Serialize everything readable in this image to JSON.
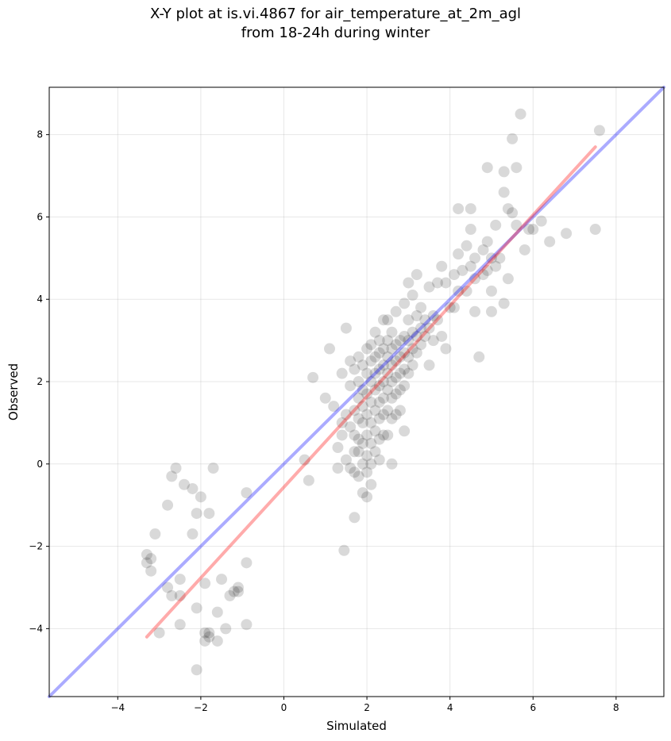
{
  "chart_data": {
    "type": "scatter",
    "title_lines": [
      "X-Y plot at is.vi.4867 for air_temperature_at_2m_agl",
      "from 18-24h during winter"
    ],
    "xlabel": "Simulated",
    "ylabel": "Observed",
    "xlim": [
      -5.65,
      9.15
    ],
    "ylim": [
      -5.65,
      9.15
    ],
    "xticks": [
      -4,
      -2,
      0,
      2,
      4,
      6,
      8
    ],
    "yticks": [
      -4,
      -2,
      0,
      2,
      4,
      6,
      8
    ],
    "grid": true,
    "point_color": "#000000",
    "point_alpha": 0.15,
    "lines": [
      {
        "color": "#0000ff",
        "alpha": 0.33,
        "x": [
          -5.65,
          9.15
        ],
        "y": [
          -5.65,
          9.15
        ]
      },
      {
        "color": "#ff0000",
        "alpha": 0.33,
        "x": [
          -3.3,
          7.5
        ],
        "y": [
          -4.2,
          7.7
        ]
      }
    ],
    "points": [
      [
        -3.3,
        -2.4
      ],
      [
        -3.3,
        -2.2
      ],
      [
        -3.2,
        -2.6
      ],
      [
        -3.2,
        -2.3
      ],
      [
        -3.1,
        -1.7
      ],
      [
        -3.0,
        -4.1
      ],
      [
        -2.8,
        -1.0
      ],
      [
        -2.8,
        -3.0
      ],
      [
        -2.7,
        -3.2
      ],
      [
        -2.7,
        -0.3
      ],
      [
        -2.6,
        -0.1
      ],
      [
        -2.5,
        -2.8
      ],
      [
        -2.5,
        -3.2
      ],
      [
        -2.5,
        -3.9
      ],
      [
        -2.4,
        -0.5
      ],
      [
        -2.2,
        -0.6
      ],
      [
        -2.2,
        -1.7
      ],
      [
        -2.1,
        -1.2
      ],
      [
        -2.1,
        -3.5
      ],
      [
        -2.1,
        -5.0
      ],
      [
        -2.0,
        -0.8
      ],
      [
        -1.9,
        -2.9
      ],
      [
        -1.9,
        -4.1
      ],
      [
        -1.9,
        -4.3
      ],
      [
        -1.8,
        -4.2
      ],
      [
        -1.8,
        -1.2
      ],
      [
        -1.8,
        -4.1
      ],
      [
        -1.7,
        -0.1
      ],
      [
        -1.6,
        -4.3
      ],
      [
        -1.6,
        -3.6
      ],
      [
        -1.5,
        -2.8
      ],
      [
        -1.4,
        -4.0
      ],
      [
        -1.3,
        -3.2
      ],
      [
        -1.2,
        -3.1
      ],
      [
        -1.1,
        -3.0
      ],
      [
        -1.1,
        -3.1
      ],
      [
        -0.9,
        -2.4
      ],
      [
        -0.9,
        -3.9
      ],
      [
        -0.9,
        -0.7
      ],
      [
        0.5,
        0.1
      ],
      [
        0.6,
        -0.4
      ],
      [
        0.7,
        2.1
      ],
      [
        1.0,
        1.6
      ],
      [
        1.1,
        2.8
      ],
      [
        1.2,
        1.4
      ],
      [
        1.3,
        0.4
      ],
      [
        1.3,
        -0.1
      ],
      [
        1.4,
        2.2
      ],
      [
        1.4,
        1.0
      ],
      [
        1.4,
        0.7
      ],
      [
        1.45,
        -2.1
      ],
      [
        1.5,
        3.3
      ],
      [
        1.5,
        0.1
      ],
      [
        1.5,
        1.2
      ],
      [
        1.6,
        2.5
      ],
      [
        1.6,
        1.9
      ],
      [
        1.6,
        0.9
      ],
      [
        1.6,
        -0.1
      ],
      [
        1.7,
        2.3
      ],
      [
        1.7,
        1.3
      ],
      [
        1.7,
        0.7
      ],
      [
        1.7,
        0.3
      ],
      [
        1.7,
        -0.2
      ],
      [
        1.7,
        -1.3
      ],
      [
        1.8,
        2.6
      ],
      [
        1.8,
        2.0
      ],
      [
        1.8,
        1.6
      ],
      [
        1.8,
        1.1
      ],
      [
        1.8,
        0.6
      ],
      [
        1.8,
        0.3
      ],
      [
        1.8,
        -0.3
      ],
      [
        1.9,
        2.4
      ],
      [
        1.9,
        1.8
      ],
      [
        1.9,
        1.4
      ],
      [
        1.9,
        1.0
      ],
      [
        1.9,
        0.5
      ],
      [
        1.9,
        0.0
      ],
      [
        1.9,
        -0.7
      ],
      [
        2.0,
        2.8
      ],
      [
        2.0,
        2.2
      ],
      [
        2.0,
        1.7
      ],
      [
        2.0,
        1.2
      ],
      [
        2.0,
        0.7
      ],
      [
        2.0,
        0.2
      ],
      [
        2.0,
        -0.2
      ],
      [
        2.0,
        -0.8
      ],
      [
        2.1,
        2.9
      ],
      [
        2.1,
        2.5
      ],
      [
        2.1,
        2.0
      ],
      [
        2.1,
        1.5
      ],
      [
        2.1,
        1.0
      ],
      [
        2.1,
        0.5
      ],
      [
        2.1,
        0.0
      ],
      [
        2.1,
        -0.5
      ],
      [
        2.2,
        3.2
      ],
      [
        2.2,
        2.6
      ],
      [
        2.2,
        2.2
      ],
      [
        2.2,
        1.8
      ],
      [
        2.2,
        1.3
      ],
      [
        2.2,
        0.8
      ],
      [
        2.2,
        0.3
      ],
      [
        2.3,
        3.0
      ],
      [
        2.3,
        2.7
      ],
      [
        2.3,
        2.3
      ],
      [
        2.3,
        1.9
      ],
      [
        2.3,
        1.5
      ],
      [
        2.3,
        1.1
      ],
      [
        2.3,
        0.6
      ],
      [
        2.3,
        0.1
      ],
      [
        2.4,
        3.5
      ],
      [
        2.4,
        2.8
      ],
      [
        2.4,
        2.4
      ],
      [
        2.4,
        2.0
      ],
      [
        2.4,
        1.6
      ],
      [
        2.4,
        1.2
      ],
      [
        2.4,
        0.7
      ],
      [
        2.5,
        3.5
      ],
      [
        2.5,
        3.0
      ],
      [
        2.5,
        2.6
      ],
      [
        2.5,
        2.2
      ],
      [
        2.5,
        1.8
      ],
      [
        2.5,
        1.3
      ],
      [
        2.5,
        0.7
      ],
      [
        2.6,
        3.2
      ],
      [
        2.6,
        2.8
      ],
      [
        2.6,
        2.4
      ],
      [
        2.6,
        2.0
      ],
      [
        2.6,
        1.6
      ],
      [
        2.6,
        1.1
      ],
      [
        2.6,
        0.0
      ],
      [
        2.7,
        3.7
      ],
      [
        2.7,
        2.9
      ],
      [
        2.7,
        2.5
      ],
      [
        2.7,
        2.1
      ],
      [
        2.7,
        1.7
      ],
      [
        2.7,
        1.2
      ],
      [
        2.8,
        3.0
      ],
      [
        2.8,
        2.6
      ],
      [
        2.8,
        2.2
      ],
      [
        2.8,
        1.8
      ],
      [
        2.8,
        1.3
      ],
      [
        2.9,
        3.9
      ],
      [
        2.9,
        3.1
      ],
      [
        2.9,
        2.7
      ],
      [
        2.9,
        2.3
      ],
      [
        2.9,
        1.9
      ],
      [
        2.9,
        0.8
      ],
      [
        3.0,
        4.4
      ],
      [
        3.0,
        3.5
      ],
      [
        3.0,
        3.0
      ],
      [
        3.0,
        2.6
      ],
      [
        3.0,
        2.2
      ],
      [
        3.1,
        4.1
      ],
      [
        3.1,
        3.2
      ],
      [
        3.1,
        2.8
      ],
      [
        3.1,
        2.4
      ],
      [
        3.2,
        4.6
      ],
      [
        3.2,
        3.6
      ],
      [
        3.2,
        3.1
      ],
      [
        3.2,
        2.7
      ],
      [
        3.3,
        3.8
      ],
      [
        3.3,
        3.3
      ],
      [
        3.3,
        2.9
      ],
      [
        3.4,
        3.5
      ],
      [
        3.4,
        3.1
      ],
      [
        3.5,
        4.3
      ],
      [
        3.5,
        3.3
      ],
      [
        3.5,
        2.4
      ],
      [
        3.6,
        3.6
      ],
      [
        3.6,
        3.0
      ],
      [
        3.7,
        4.4
      ],
      [
        3.7,
        3.5
      ],
      [
        3.8,
        4.8
      ],
      [
        3.8,
        3.1
      ],
      [
        3.9,
        4.4
      ],
      [
        3.9,
        2.8
      ],
      [
        4.0,
        3.8
      ],
      [
        4.1,
        4.6
      ],
      [
        4.1,
        3.8
      ],
      [
        4.2,
        5.1
      ],
      [
        4.2,
        4.2
      ],
      [
        4.2,
        6.2
      ],
      [
        4.3,
        4.7
      ],
      [
        4.4,
        5.3
      ],
      [
        4.4,
        4.2
      ],
      [
        4.5,
        6.2
      ],
      [
        4.5,
        5.7
      ],
      [
        4.5,
        4.8
      ],
      [
        4.6,
        5.0
      ],
      [
        4.6,
        4.5
      ],
      [
        4.6,
        3.7
      ],
      [
        4.7,
        2.6
      ],
      [
        4.8,
        5.2
      ],
      [
        4.8,
        4.6
      ],
      [
        4.9,
        7.2
      ],
      [
        4.9,
        5.4
      ],
      [
        4.9,
        4.7
      ],
      [
        5.0,
        3.7
      ],
      [
        5.0,
        4.2
      ],
      [
        5.0,
        5.0
      ],
      [
        5.1,
        4.8
      ],
      [
        5.1,
        5.8
      ],
      [
        5.2,
        5.0
      ],
      [
        5.3,
        3.9
      ],
      [
        5.3,
        6.6
      ],
      [
        5.3,
        7.1
      ],
      [
        5.4,
        6.2
      ],
      [
        5.4,
        4.5
      ],
      [
        5.5,
        6.1
      ],
      [
        5.5,
        7.9
      ],
      [
        5.6,
        7.2
      ],
      [
        5.6,
        5.8
      ],
      [
        5.7,
        8.5
      ],
      [
        5.8,
        5.2
      ],
      [
        5.9,
        5.7
      ],
      [
        6.0,
        5.7
      ],
      [
        6.2,
        5.9
      ],
      [
        6.4,
        5.4
      ],
      [
        6.8,
        5.6
      ],
      [
        7.5,
        5.7
      ],
      [
        7.6,
        8.1
      ]
    ]
  }
}
